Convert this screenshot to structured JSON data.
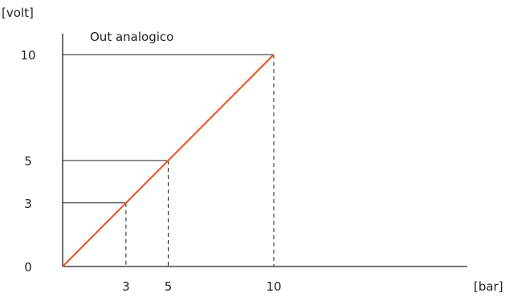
{
  "chart_data": {
    "type": "line",
    "title": "Out analogico",
    "xlabel": "[bar]",
    "ylabel": "[volt]",
    "xlim": [
      0,
      11
    ],
    "ylim": [
      0,
      10
    ],
    "x_ticks": [
      3,
      5,
      10
    ],
    "y_ticks": [
      0,
      3,
      5,
      10
    ],
    "grid": false,
    "series": [
      {
        "x": [
          0,
          10
        ],
        "y": [
          0,
          10
        ],
        "color": "#e8541c"
      }
    ],
    "reference_points": [
      {
        "x": 3,
        "y": 3
      },
      {
        "x": 5,
        "y": 5
      },
      {
        "x": 10,
        "y": 10
      }
    ]
  }
}
